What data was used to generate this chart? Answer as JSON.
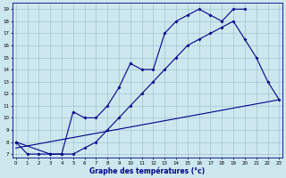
{
  "xlabel": "Graphe des températures (°c)",
  "bg_color": "#cce8ee",
  "line_color": "#00008b",
  "grid_color": "#99bbcc",
  "xlim": [
    -0.5,
    23.5
  ],
  "ylim": [
    6.5,
    19.5
  ],
  "xticks": [
    0,
    1,
    2,
    3,
    4,
    5,
    6,
    7,
    8,
    9,
    10,
    11,
    12,
    13,
    14,
    15,
    16,
    17,
    18,
    19,
    20,
    21,
    22,
    23
  ],
  "yticks": [
    7,
    8,
    9,
    10,
    11,
    12,
    13,
    14,
    15,
    16,
    17,
    18,
    19
  ],
  "line1_x": [
    0,
    1,
    2,
    3,
    4,
    5,
    6,
    7,
    8,
    9,
    10,
    11,
    12,
    13,
    14,
    15,
    16,
    17,
    18,
    19,
    20
  ],
  "line1_y": [
    8,
    7,
    7,
    7,
    7,
    10.5,
    10,
    10,
    11,
    12.5,
    14.5,
    14,
    14,
    17,
    18,
    18.5,
    19,
    18.5,
    18,
    19,
    19
  ],
  "line2_x": [
    0,
    3,
    4,
    5,
    6,
    7,
    8,
    9,
    10,
    11,
    12,
    13,
    14,
    15,
    16,
    17,
    18,
    19,
    20,
    21,
    22,
    23
  ],
  "line2_y": [
    8,
    7,
    7,
    7,
    7.5,
    8,
    9,
    10,
    11,
    12,
    13,
    14,
    15,
    16,
    16.5,
    17,
    17.5,
    18,
    16.5,
    15,
    13,
    11.5
  ],
  "line3_x": [
    0,
    23
  ],
  "line3_y": [
    7.5,
    11.5
  ]
}
